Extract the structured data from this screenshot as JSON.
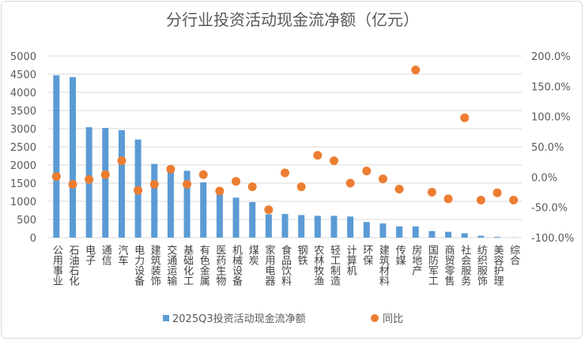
{
  "chart_data": {
    "type": "bar+scatter",
    "title": "分行业投资活动现金流净额（亿元）",
    "categories": [
      "公用事业",
      "石油石化",
      "电子",
      "通信",
      "汽车",
      "电力设备",
      "建筑装饰",
      "交通运输",
      "基础化工",
      "有色金属",
      "医药生物",
      "机械设备",
      "煤炭",
      "家用电器",
      "食品饮料",
      "钢铁",
      "农林牧渔",
      "轻工制造",
      "计算机",
      "环保",
      "建筑材料",
      "传媒",
      "房地产",
      "国防军工",
      "商贸零售",
      "社会服务",
      "纺织服饰",
      "美容护理",
      "综合"
    ],
    "series": [
      {
        "name": "2025Q3投资活动现金流净额",
        "type": "bar",
        "axis": "left",
        "color": "#5b9bd5",
        "values": [
          4470,
          4420,
          3040,
          3020,
          2960,
          2700,
          2030,
          1900,
          1840,
          1520,
          1250,
          1100,
          980,
          640,
          650,
          620,
          600,
          600,
          580,
          430,
          390,
          310,
          310,
          180,
          160,
          120,
          50,
          20,
          5
        ]
      },
      {
        "name": "同比",
        "type": "scatter",
        "axis": "right",
        "color": "#ed7d31",
        "values": [
          1,
          -12,
          -4,
          4,
          27,
          -22,
          -12,
          13,
          -12,
          4,
          -23,
          -7,
          -16,
          -54,
          7,
          -16,
          36,
          27,
          -10,
          10,
          -3,
          -20,
          177,
          -25,
          -36,
          98,
          -38,
          -26,
          -38
        ]
      }
    ],
    "left_axis": {
      "ylim": [
        0,
        5000
      ],
      "ticks": [
        "0",
        "500",
        "1000",
        "1500",
        "2000",
        "2500",
        "3000",
        "3500",
        "4000",
        "4500",
        "5000"
      ]
    },
    "right_axis": {
      "ylim": [
        -100,
        200
      ],
      "unit": "%",
      "ticks": [
        "-100.0%",
        "-50.0%",
        "0.0%",
        "50.0%",
        "100.0%",
        "150.0%",
        "200.0%"
      ]
    },
    "grid": true,
    "legend": "bottom"
  }
}
